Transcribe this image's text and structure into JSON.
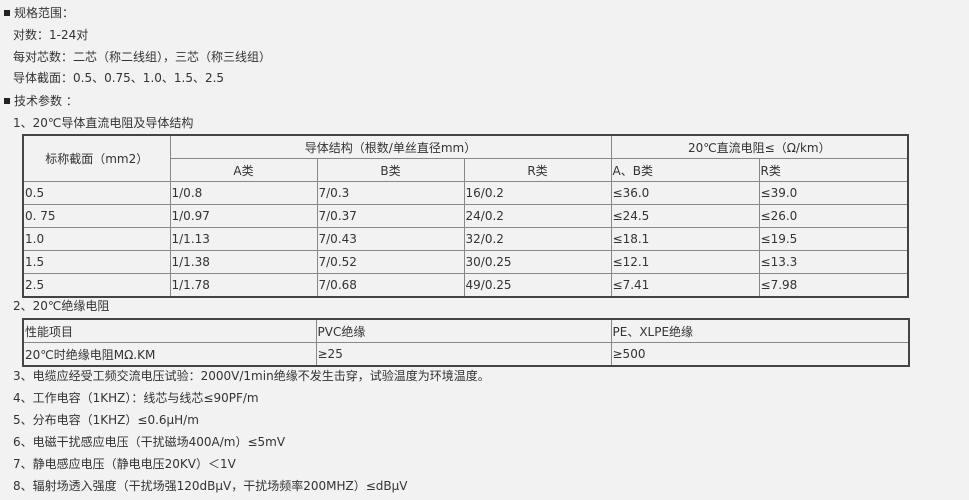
{
  "spec_range": {
    "heading": "规格范围：",
    "lines": [
      "对数：1-24对",
      "每对芯数：二芯（称二线组），三芯（称三线组）",
      "导体截面：0.5、0.75、1.0、1.5、2.5"
    ]
  },
  "tech_params": {
    "heading": "技术参数 ：",
    "item1_title": "1、20℃导体直流电阻及导体结构",
    "table1": {
      "col_nominal": "标称截面（mm2）",
      "group_structure": "导体结构（根数/单丝直径mm）",
      "group_resistance": "20℃直流电阻≤（Ω/km）",
      "sub_headers": [
        "A类",
        "B类",
        "R类",
        "A、B类",
        "R类"
      ],
      "rows": [
        [
          "0.5",
          "1/0.8",
          "7/0.3",
          "16/0.2",
          "≤36.0",
          "≤39.0"
        ],
        [
          "0. 75",
          "1/0.97",
          "7/0.37",
          "24/0.2",
          "≤24.5",
          "≤26.0"
        ],
        [
          "1.0",
          "1/1.13",
          "7/0.43",
          "32/0.2",
          "≤18.1",
          "≤19.5"
        ],
        [
          "1.5",
          "1/1.38",
          "7/0.52",
          "30/0.25",
          "≤12.1",
          "≤13.3"
        ],
        [
          "2.5",
          "1/1.78",
          "7/0.68",
          "49/0.25",
          "≤7.41",
          "≤7.98"
        ]
      ]
    },
    "item2_title": "2、20℃绝缘电阻",
    "table2": {
      "headers": [
        "性能项目",
        "PVC绝缘",
        "PE、XLPE绝缘"
      ],
      "row": [
        "20℃时绝缘电阻MΩ.KM",
        "≥25",
        "≥500"
      ]
    },
    "items": [
      "3、电缆应经受工频交流电压试验：2000V/1min绝缘不发生击穿，试验温度为环境温度。",
      "4、工作电容（1KHZ）：线芯与线芯≤90PF/m",
      "5、分布电容（1KHZ）≤0.6μH/m",
      "6、电磁干扰感应电压（干扰磁场400A/m）≤5mV",
      "7、静电感应电压（静电电压20KV）＜1V",
      "8、辐射场透入强度（干扰场强120dBμV，干扰场频率200MHZ）≤dBμV"
    ]
  }
}
